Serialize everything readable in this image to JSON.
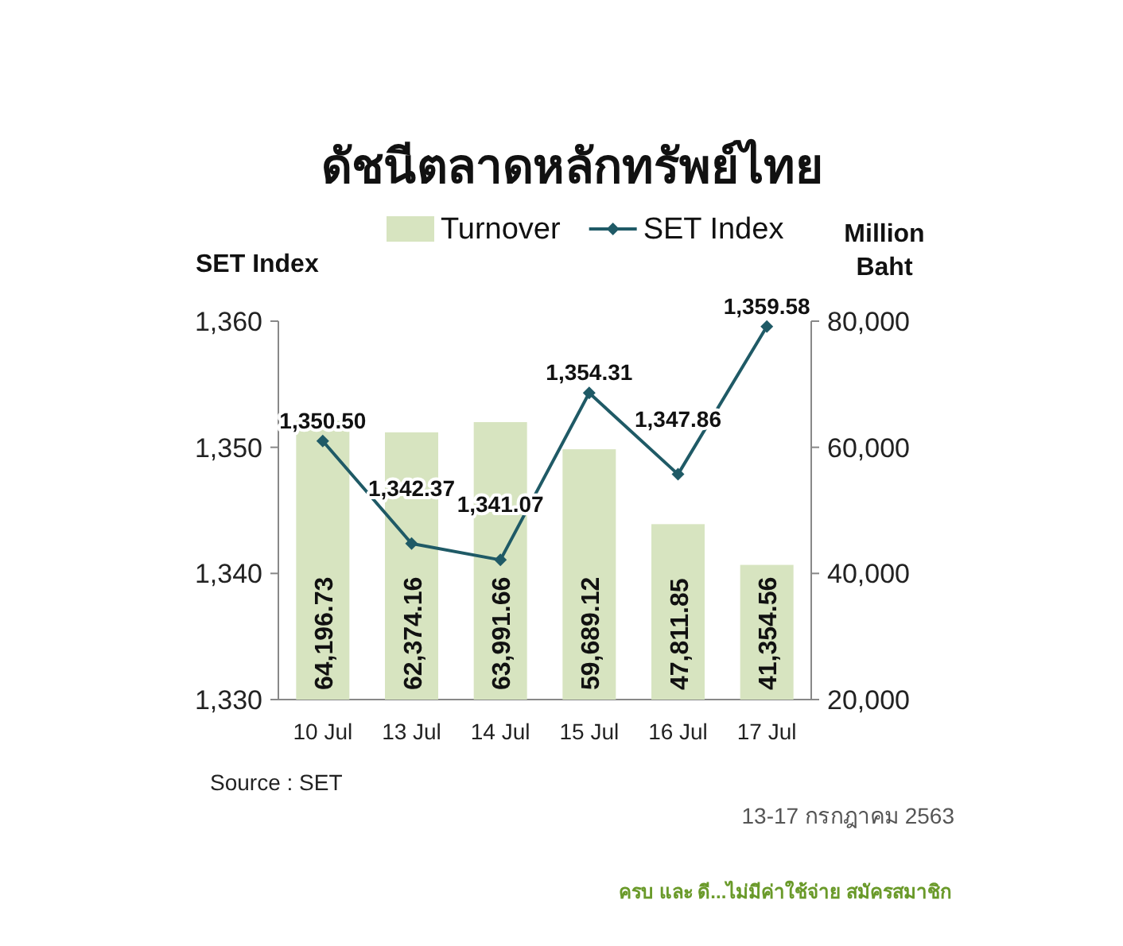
{
  "chart_data": {
    "type": "bar",
    "title": "ดัชนีตลาดหลักทรัพย์ไทย",
    "ylabel": "SET Index",
    "y2label": "Million Baht",
    "categories": [
      "10 Jul",
      "13 Jul",
      "14 Jul",
      "15 Jul",
      "16 Jul",
      "17 Jul"
    ],
    "series": [
      {
        "name": "Turnover",
        "type": "bar",
        "axis": "y2",
        "color": "#d7e4c0",
        "values": [
          64196.73,
          62374.16,
          63991.66,
          59689.12,
          47811.85,
          41354.56
        ],
        "value_labels": [
          "64,196.73",
          "62,374.16",
          "63,991.66",
          "59,689.12",
          "47,811.85",
          "41,354.56"
        ]
      },
      {
        "name": "SET Index",
        "type": "line",
        "axis": "y",
        "color": "#1f5a66",
        "marker": "diamond",
        "values": [
          1350.5,
          1342.37,
          1341.07,
          1354.31,
          1347.86,
          1359.58
        ],
        "value_labels": [
          "1,350.50",
          "1,342.37",
          "1,341.07",
          "1,354.31",
          "1,347.86",
          "1,359.58"
        ]
      }
    ],
    "ylim": [
      1330,
      1360
    ],
    "yticks": [
      {
        "value": 1330,
        "label": "1,330"
      },
      {
        "value": 1340,
        "label": "1,340"
      },
      {
        "value": 1350,
        "label": "1,350"
      },
      {
        "value": 1360,
        "label": "1,360"
      }
    ],
    "y2lim": [
      20000,
      80000
    ],
    "y2ticks": [
      {
        "value": 20000,
        "label": "20,000"
      },
      {
        "value": 40000,
        "label": "40,000"
      },
      {
        "value": 60000,
        "label": "60,000"
      },
      {
        "value": 80000,
        "label": "80,000"
      }
    ],
    "legend": "top",
    "grid": false,
    "annotations": [
      "Source : SET",
      "13-17 กรกฎาคม 2563",
      "ครบ และ ดี...ไม่มีค่าใช้จ่าย สมัครสมาชิก"
    ]
  }
}
